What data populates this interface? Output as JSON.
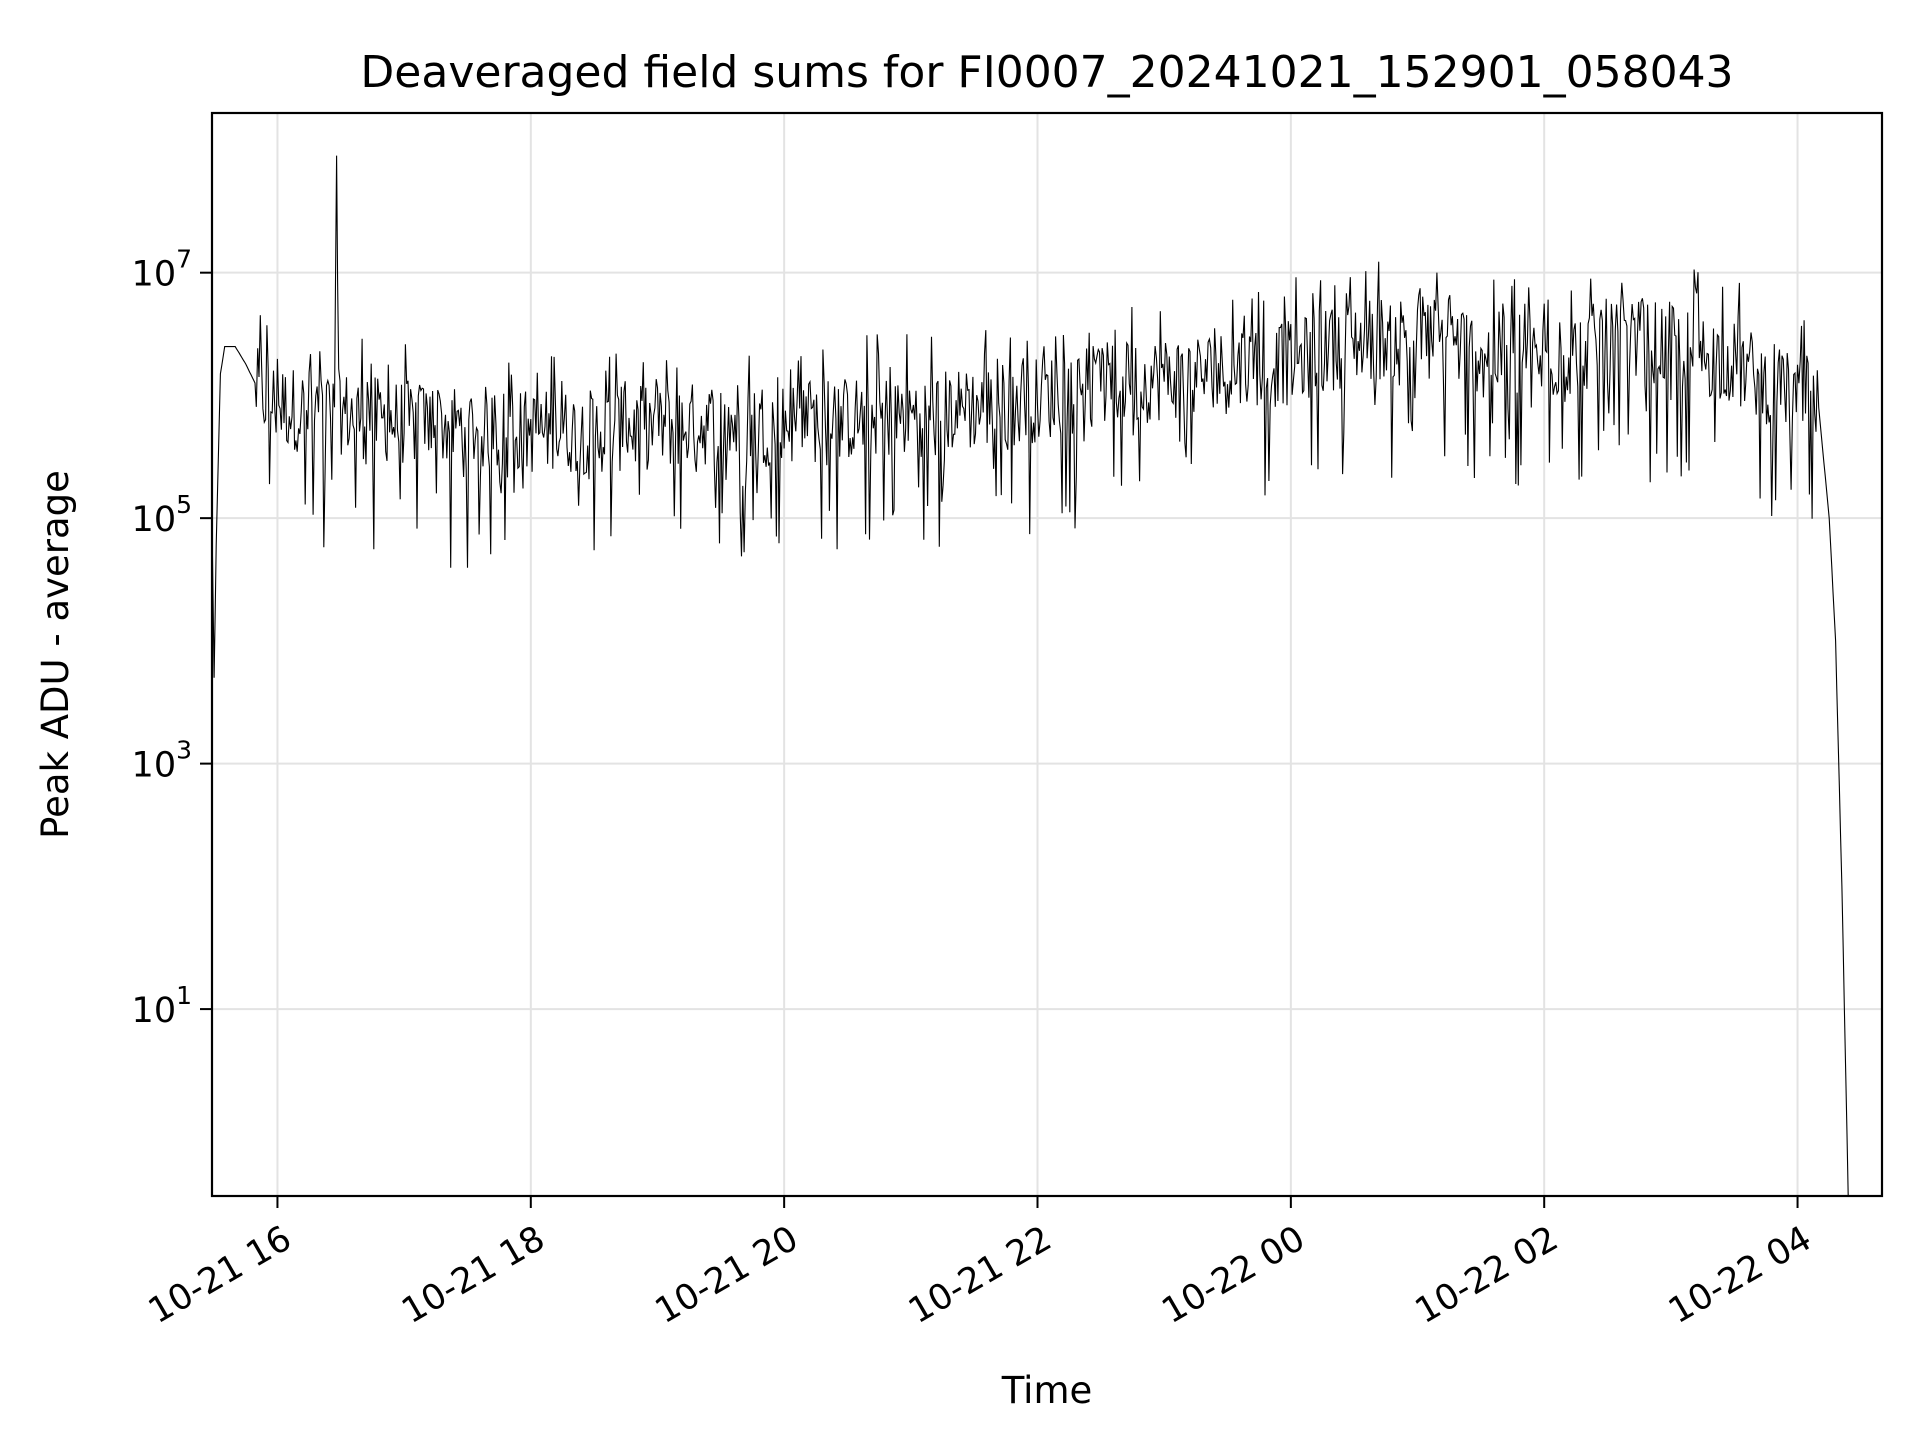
{
  "chart_data": {
    "type": "line",
    "title": "Deaveraged field sums for FI0007_20241021_152901_058043",
    "xlabel": "Time",
    "ylabel": "Peak ADU - average",
    "yscale": "log",
    "xlim": [
      "2024-10-21T15:29",
      "2024-10-22T04:40"
    ],
    "ylim": [
      0.3,
      200000000
    ],
    "grid": true,
    "x_ticks": [
      {
        "t": "2024-10-21T16:00",
        "label": "10-21 16"
      },
      {
        "t": "2024-10-21T18:00",
        "label": "10-21 18"
      },
      {
        "t": "2024-10-21T20:00",
        "label": "10-21 20"
      },
      {
        "t": "2024-10-21T22:00",
        "label": "10-21 22"
      },
      {
        "t": "2024-10-22T00:00",
        "label": "10-22 00"
      },
      {
        "t": "2024-10-22T02:00",
        "label": "10-22 02"
      },
      {
        "t": "2024-10-22T04:00",
        "label": "10-22 04"
      }
    ],
    "y_ticks": [
      {
        "value": 10,
        "base": "10",
        "exp": "1"
      },
      {
        "value": 1000,
        "base": "10",
        "exp": "3"
      },
      {
        "value": 100000,
        "base": "10",
        "exp": "5"
      },
      {
        "value": 10000000,
        "base": "10",
        "exp": "7"
      }
    ],
    "series": [
      {
        "color": "#000000",
        "x": [
          "2024-10-21T15:29",
          "2024-10-21T15:30",
          "2024-10-21T15:31",
          "2024-10-21T15:33",
          "2024-10-21T15:35",
          "2024-10-21T15:40",
          "2024-10-21T15:45",
          "2024-10-21T15:50",
          "2024-10-21T16:00",
          "2024-10-21T16:15",
          "2024-10-21T16:27",
          "2024-10-21T16:28",
          "2024-10-21T16:29",
          "2024-10-21T16:45",
          "2024-10-21T17:00",
          "2024-10-21T17:30",
          "2024-10-21T18:00",
          "2024-10-21T18:30",
          "2024-10-21T19:00",
          "2024-10-21T19:30",
          "2024-10-21T20:00",
          "2024-10-21T20:30",
          "2024-10-21T21:00",
          "2024-10-21T21:30",
          "2024-10-21T22:00",
          "2024-10-21T22:30",
          "2024-10-21T23:00",
          "2024-10-21T23:30",
          "2024-10-22T00:00",
          "2024-10-22T00:30",
          "2024-10-22T01:00",
          "2024-10-22T01:30",
          "2024-10-22T02:00",
          "2024-10-22T02:30",
          "2024-10-22T03:00",
          "2024-10-22T03:30",
          "2024-10-22T04:00",
          "2024-10-22T04:10",
          "2024-10-22T04:15",
          "2024-10-22T04:18",
          "2024-10-22T04:21",
          "2024-10-22T04:24"
        ],
        "y": [
          90000,
          5000,
          60000,
          1500000,
          2500000,
          2500000,
          1800000,
          1200000,
          900000,
          800000,
          800000,
          90000000,
          800000,
          700000,
          650000,
          600000,
          550000,
          550000,
          600000,
          650000,
          650000,
          700000,
          750000,
          850000,
          1000000,
          1300000,
          1500000,
          1700000,
          2000000,
          3000000,
          3500000,
          2500000,
          2000000,
          3000000,
          2800000,
          2000000,
          1000000,
          800000,
          100000,
          10000,
          100,
          0.3
        ]
      }
    ]
  }
}
